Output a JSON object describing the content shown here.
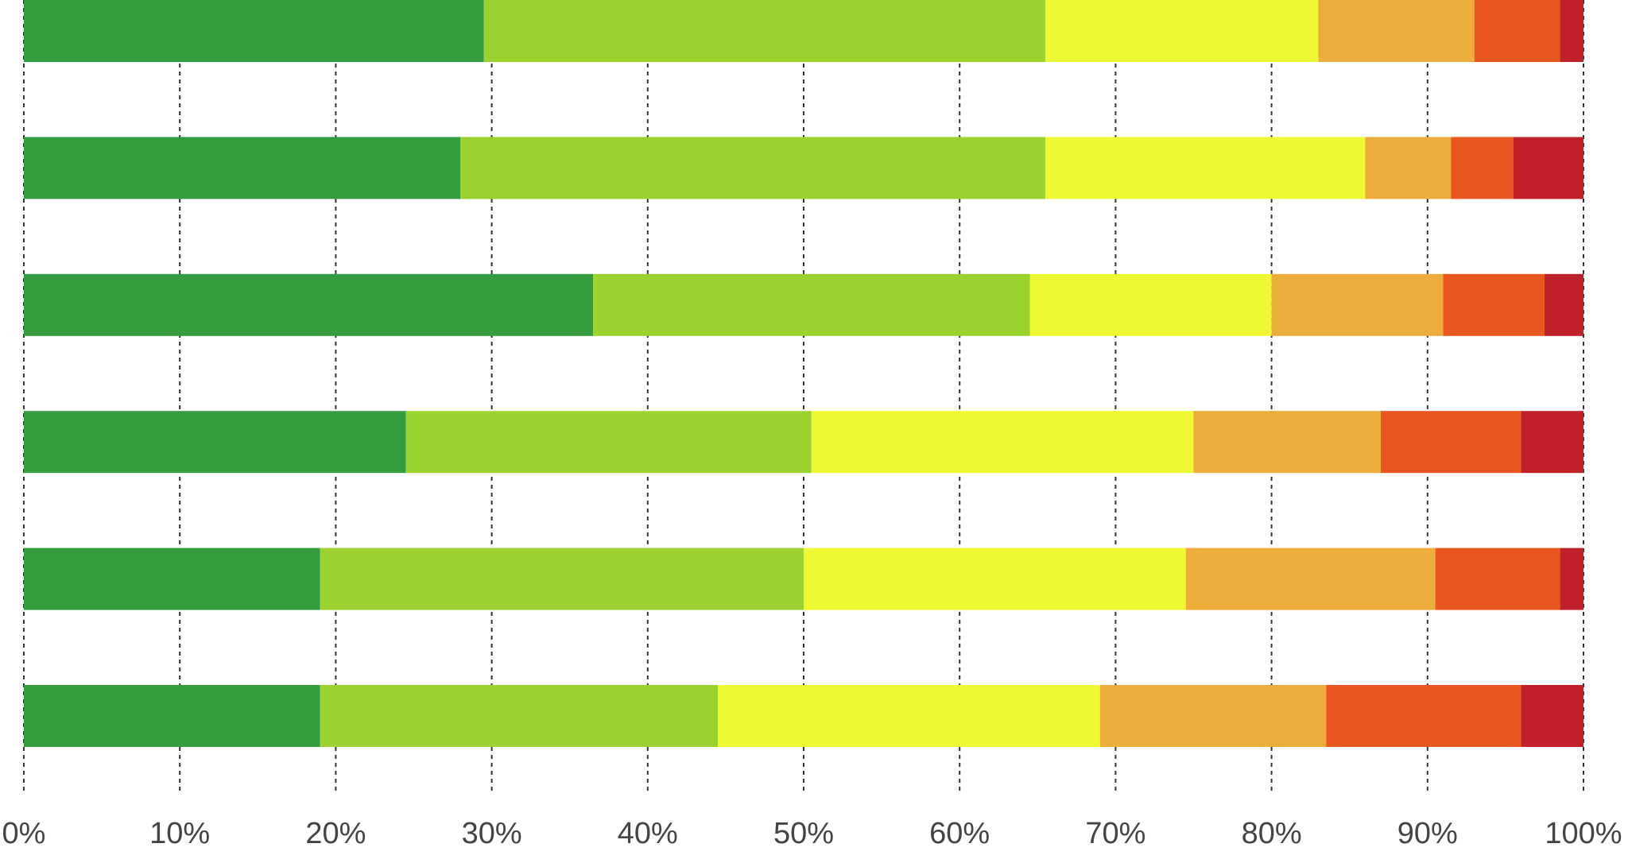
{
  "chart_data": {
    "type": "stacked-horizontal-bar",
    "categories": [
      null,
      null,
      null,
      null,
      null,
      null
    ],
    "series": [
      {
        "color": "#339c3f",
        "values": [
          29.5,
          28,
          36.5,
          24.5,
          19,
          19
        ]
      },
      {
        "color": "#9cd22f",
        "values": [
          36,
          37.5,
          28,
          26,
          31,
          25.5
        ]
      },
      {
        "color": "#eef833",
        "values": [
          17.5,
          20.5,
          15.5,
          24.5,
          24.5,
          24.5
        ]
      },
      {
        "color": "#ecad3b",
        "values": [
          10,
          5.5,
          11,
          12,
          16,
          14.5
        ]
      },
      {
        "color": "#e8571f",
        "values": [
          5.5,
          4,
          6.5,
          9,
          8,
          12.5
        ]
      },
      {
        "color": "#c0202a",
        "values": [
          1.5,
          4.5,
          2.5,
          4,
          1.5,
          4
        ]
      }
    ],
    "xlim": [
      0,
      100
    ],
    "xticks": [
      {
        "value": 0,
        "label": "0%"
      },
      {
        "value": 10,
        "label": "10%"
      },
      {
        "value": 20,
        "label": "20%"
      },
      {
        "value": 30,
        "label": "30%"
      },
      {
        "value": 40,
        "label": "40%"
      },
      {
        "value": 50,
        "label": "50%"
      },
      {
        "value": 60,
        "label": "60%"
      },
      {
        "value": 70,
        "label": "70%"
      },
      {
        "value": 80,
        "label": "80%"
      },
      {
        "value": 90,
        "label": "90%"
      },
      {
        "value": 100,
        "label": "100%"
      }
    ],
    "grid": true
  }
}
